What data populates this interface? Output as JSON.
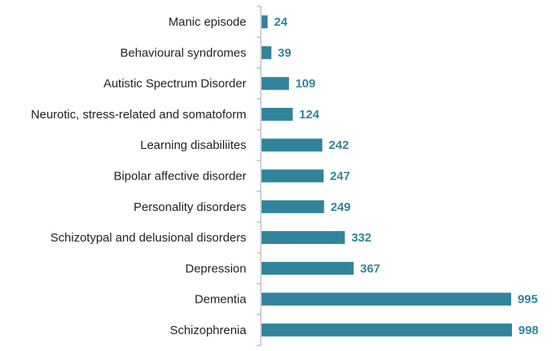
{
  "chart_data": {
    "type": "bar",
    "orientation": "horizontal",
    "categories": [
      "Manic episode",
      "Behavioural syndromes",
      "Autistic Spectrum Disorder",
      "Neurotic, stress-related and somatoform",
      "Learning disabiliites",
      "Bipolar affective disorder",
      "Personality disorders",
      "Schizotypal and delusional disorders",
      "Depression",
      "Dementia",
      "Schizophrenia"
    ],
    "values": [
      24,
      39,
      109,
      124,
      242,
      247,
      249,
      332,
      367,
      995,
      998
    ],
    "title": "",
    "xlabel": "",
    "ylabel": "",
    "xlim": [
      0,
      998
    ],
    "grid": false,
    "legend": "none",
    "data_labels": true,
    "colors": {
      "bar": "#31849B",
      "value_label": "#31849B",
      "axis": "#A6A6A6",
      "category_label": "#222222"
    }
  }
}
